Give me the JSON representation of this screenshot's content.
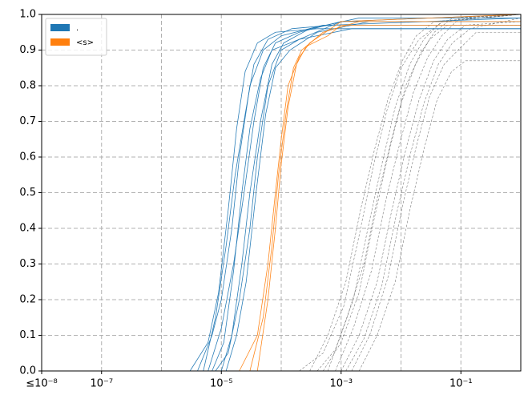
{
  "chart_data": {
    "type": "line",
    "x_scale": "log",
    "grid": true,
    "legend": "upper left",
    "xlim": [
      1e-08,
      1
    ],
    "ylim": [
      0,
      1
    ],
    "xticks": [
      {
        "value": 1e-08,
        "label": "≤10⁻⁸"
      },
      {
        "value": 1e-07,
        "label": "10⁻⁷"
      },
      {
        "value": 1e-05,
        "label": "10⁻⁵"
      },
      {
        "value": 0.001,
        "label": "10⁻³"
      },
      {
        "value": 0.1,
        "label": "10⁻¹"
      }
    ],
    "xminor": [
      1e-06,
      0.0001,
      0.01
    ],
    "yticks": [
      {
        "value": 0,
        "label": "0.0"
      },
      {
        "value": 0.1,
        "label": "0.1"
      },
      {
        "value": 0.2,
        "label": "0.2"
      },
      {
        "value": 0.3,
        "label": "0.3"
      },
      {
        "value": 0.4,
        "label": "0.4"
      },
      {
        "value": 0.5,
        "label": "0.5"
      },
      {
        "value": 0.6,
        "label": "0.6"
      },
      {
        "value": 0.7,
        "label": "0.7"
      },
      {
        "value": 0.8,
        "label": "0.8"
      },
      {
        "value": 0.9,
        "label": "0.9"
      },
      {
        "value": 1,
        "label": "1.0"
      }
    ],
    "series": [
      {
        "color": "#444444",
        "dashed": true,
        "lines": [
          {
            "x": [
              0.0003,
              0.0006,
              0.0012,
              0.0021,
              0.0036,
              0.006,
              0.0105,
              0.018,
              0.036,
              1
            ],
            "values": [
              0,
              0.1,
              0.25,
              0.45,
              0.62,
              0.76,
              0.87,
              0.94,
              0.98,
              1
            ]
          },
          {
            "x": [
              0.0005,
              0.001,
              0.002,
              0.0035,
              0.006,
              0.01,
              0.0175,
              0.03,
              0.06,
              1
            ],
            "values": [
              0,
              0.08,
              0.22,
              0.42,
              0.6,
              0.75,
              0.86,
              0.93,
              0.97,
              0.97
            ]
          },
          {
            "x": [
              0.0008,
              0.0016,
              0.0032,
              0.0056,
              0.0096,
              0.016,
              0.028,
              0.048,
              0.096,
              1
            ],
            "values": [
              0,
              0.12,
              0.28,
              0.48,
              0.64,
              0.78,
              0.88,
              0.94,
              0.99,
              1
            ]
          },
          {
            "x": [
              0.001,
              0.002,
              0.004,
              0.007,
              0.012,
              0.02,
              0.035,
              0.06,
              0.12,
              1
            ],
            "values": [
              0,
              0.1,
              0.25,
              0.45,
              0.62,
              0.76,
              0.87,
              0.93,
              0.97,
              0.98
            ]
          },
          {
            "x": [
              0.0015,
              0.003,
              0.006,
              0.0105,
              0.018,
              0.03,
              0.0525,
              0.09,
              0.18,
              1
            ],
            "values": [
              0,
              0.1,
              0.26,
              0.46,
              0.63,
              0.77,
              0.86,
              0.9,
              0.95,
              0.95
            ]
          },
          {
            "x": [
              0.0004,
              0.0008,
              0.0016,
              0.0028,
              0.0048,
              0.008,
              0.014,
              0.024,
              0.048,
              1
            ],
            "values": [
              0,
              0.06,
              0.2,
              0.4,
              0.58,
              0.74,
              0.86,
              0.93,
              0.98,
              1
            ]
          },
          {
            "x": [
              0.0006,
              0.0012,
              0.0024,
              0.0042,
              0.0072,
              0.012,
              0.021,
              0.036,
              0.072,
              1
            ],
            "values": [
              0,
              0.14,
              0.3,
              0.5,
              0.66,
              0.8,
              0.89,
              0.95,
              0.99,
              1
            ]
          },
          {
            "x": [
              0.002,
              0.004,
              0.008,
              0.014,
              0.024,
              0.04,
              0.07,
              0.12,
              0.24,
              1
            ],
            "values": [
              0,
              0.1,
              0.25,
              0.45,
              0.62,
              0.76,
              0.84,
              0.87,
              0.87,
              0.87
            ]
          },
          {
            "x": [
              0.0012,
              0.0024,
              0.0048,
              0.0084,
              0.0144,
              0.024,
              0.042,
              0.072,
              0.144,
              1
            ],
            "values": [
              0,
              0.09,
              0.24,
              0.44,
              0.61,
              0.75,
              0.86,
              0.92,
              0.96,
              0.99
            ]
          },
          {
            "x": [
              0.0002,
              0.0005,
              0.0011,
              0.002,
              0.0034,
              0.0058,
              0.01,
              0.02,
              0.05,
              1
            ],
            "values": [
              0,
              0.05,
              0.18,
              0.38,
              0.57,
              0.73,
              0.85,
              0.93,
              0.98,
              1
            ]
          }
        ]
      },
      {
        "name": ".",
        "color": "#1f77b4",
        "dashed": false,
        "lines": [
          {
            "x": [
              4e-06,
              7e-06,
              1e-05,
              1.5e-05,
              2e-05,
              3e-05,
              5e-05,
              0.0001,
              0.0005,
              1
            ],
            "values": [
              0,
              0.1,
              0.2,
              0.4,
              0.6,
              0.8,
              0.9,
              0.94,
              0.97,
              0.97
            ]
          },
          {
            "x": [
              6e-06,
              1e-05,
              1.6e-05,
              2.4e-05,
              3.5e-05,
              5e-05,
              8e-05,
              0.0002,
              0.001,
              1
            ],
            "values": [
              0,
              0.12,
              0.3,
              0.5,
              0.7,
              0.85,
              0.92,
              0.95,
              0.98,
              0.98
            ]
          },
          {
            "x": [
              1e-05,
              1.5e-05,
              2.2e-05,
              3e-05,
              4.5e-05,
              7e-05,
              0.00011,
              0.0003,
              0.002,
              1
            ],
            "values": [
              0,
              0.1,
              0.3,
              0.5,
              0.7,
              0.86,
              0.92,
              0.96,
              0.99,
              0.99
            ]
          },
          {
            "x": [
              3e-06,
              6e-06,
              9e-06,
              1.3e-05,
              1.8e-05,
              2.5e-05,
              4e-05,
              8e-05,
              0.0004,
              1
            ],
            "values": [
              0,
              0.08,
              0.22,
              0.45,
              0.68,
              0.84,
              0.92,
              0.95,
              0.96,
              0.96
            ]
          },
          {
            "x": [
              8e-06,
              1.3e-05,
              2e-05,
              3e-05,
              4e-05,
              6e-05,
              0.0001,
              0.0002,
              0.001,
              1
            ],
            "values": [
              0,
              0.05,
              0.2,
              0.4,
              0.6,
              0.8,
              0.9,
              0.93,
              0.98,
              1
            ]
          },
          {
            "x": [
              1.2e-05,
              1.8e-05,
              2.6e-05,
              3.8e-05,
              5.5e-05,
              8e-05,
              0.00014,
              0.0004,
              0.003,
              1
            ],
            "values": [
              0,
              0.1,
              0.25,
              0.5,
              0.72,
              0.85,
              0.9,
              0.95,
              0.98,
              0.98
            ]
          },
          {
            "x": [
              5e-06,
              8e-06,
              1.2e-05,
              1.7e-05,
              2.5e-05,
              3.5e-05,
              6e-05,
              0.00015,
              0.0007,
              1
            ],
            "values": [
              0,
              0.15,
              0.35,
              0.55,
              0.72,
              0.86,
              0.93,
              0.96,
              0.97,
              0.99
            ]
          },
          {
            "x": [
              7e-06,
              1.1e-05,
              1.6e-05,
              2.2e-05,
              3e-05,
              4.5e-05,
              7e-05,
              0.0002,
              0.0015,
              1
            ],
            "values": [
              0,
              0.08,
              0.28,
              0.5,
              0.68,
              0.82,
              0.9,
              0.93,
              0.96,
              0.96
            ]
          }
        ]
      },
      {
        "name": "<s>",
        "color": "#ff7f0e",
        "dashed": false,
        "lines": [
          {
            "x": [
              2e-05,
              4e-05,
              6e-05,
              8e-05,
              0.0001,
              0.00013,
              0.0002,
              0.0003,
              0.001,
              1
            ],
            "values": [
              0,
              0.1,
              0.3,
              0.5,
              0.65,
              0.8,
              0.88,
              0.92,
              0.98,
              1
            ]
          },
          {
            "x": [
              3e-05,
              5e-05,
              7e-05,
              9e-05,
              0.00012,
              0.00016,
              0.00022,
              0.0005,
              0.002,
              1
            ],
            "values": [
              0,
              0.15,
              0.35,
              0.55,
              0.72,
              0.85,
              0.9,
              0.95,
              0.98,
              0.98
            ]
          },
          {
            "x": [
              4e-05,
              6e-05,
              8e-05,
              0.0001,
              0.00013,
              0.00018,
              0.00026,
              0.0006,
              0.001,
              1
            ],
            "values": [
              0,
              0.2,
              0.4,
              0.58,
              0.74,
              0.86,
              0.91,
              0.94,
              0.97,
              0.97
            ]
          }
        ]
      }
    ]
  }
}
